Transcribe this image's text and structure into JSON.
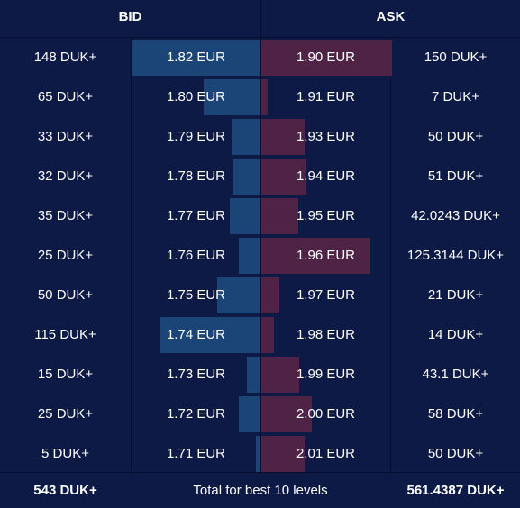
{
  "header": {
    "bid_label": "BID",
    "ask_label": "ASK"
  },
  "max_quantity": 150,
  "colors": {
    "background": "#0c1a45",
    "bid_bar": "#1c4577",
    "ask_bar": "#4e2346",
    "grid": "#060e2b",
    "text": "#ffffff"
  },
  "rows": [
    {
      "bid_qty": "148 DUK+",
      "bid_qty_value": 148,
      "bid_price": "1.82 EUR",
      "ask_price": "1.90 EUR",
      "ask_qty": "150 DUK+",
      "ask_qty_value": 150
    },
    {
      "bid_qty": "65 DUK+",
      "bid_qty_value": 65,
      "bid_price": "1.80 EUR",
      "ask_price": "1.91 EUR",
      "ask_qty": "7 DUK+",
      "ask_qty_value": 7
    },
    {
      "bid_qty": "33 DUK+",
      "bid_qty_value": 33,
      "bid_price": "1.79 EUR",
      "ask_price": "1.93 EUR",
      "ask_qty": "50 DUK+",
      "ask_qty_value": 50
    },
    {
      "bid_qty": "32 DUK+",
      "bid_qty_value": 32,
      "bid_price": "1.78 EUR",
      "ask_price": "1.94 EUR",
      "ask_qty": "51 DUK+",
      "ask_qty_value": 51
    },
    {
      "bid_qty": "35 DUK+",
      "bid_qty_value": 35,
      "bid_price": "1.77 EUR",
      "ask_price": "1.95 EUR",
      "ask_qty": "42.0243 DUK+",
      "ask_qty_value": 42.0243
    },
    {
      "bid_qty": "25 DUK+",
      "bid_qty_value": 25,
      "bid_price": "1.76 EUR",
      "ask_price": "1.96 EUR",
      "ask_qty": "125.3144 DUK+",
      "ask_qty_value": 125.3144
    },
    {
      "bid_qty": "50 DUK+",
      "bid_qty_value": 50,
      "bid_price": "1.75 EUR",
      "ask_price": "1.97 EUR",
      "ask_qty": "21 DUK+",
      "ask_qty_value": 21
    },
    {
      "bid_qty": "115 DUK+",
      "bid_qty_value": 115,
      "bid_price": "1.74 EUR",
      "ask_price": "1.98 EUR",
      "ask_qty": "14 DUK+",
      "ask_qty_value": 14
    },
    {
      "bid_qty": "15 DUK+",
      "bid_qty_value": 15,
      "bid_price": "1.73 EUR",
      "ask_price": "1.99 EUR",
      "ask_qty": "43.1 DUK+",
      "ask_qty_value": 43.1
    },
    {
      "bid_qty": "25 DUK+",
      "bid_qty_value": 25,
      "bid_price": "1.72 EUR",
      "ask_price": "2.00 EUR",
      "ask_qty": "58 DUK+",
      "ask_qty_value": 58
    },
    {
      "bid_qty": "5 DUK+",
      "bid_qty_value": 5,
      "bid_price": "1.71 EUR",
      "ask_price": "2.01 EUR",
      "ask_qty": "50 DUK+",
      "ask_qty_value": 50
    }
  ],
  "footer": {
    "bid_total": "543 DUK+",
    "label": "Total for best 10 levels",
    "ask_total": "561.4387 DUK+"
  }
}
